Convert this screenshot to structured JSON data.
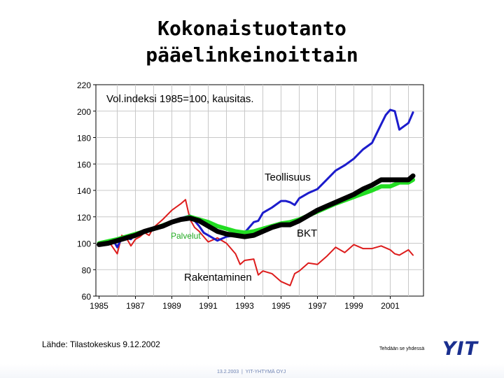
{
  "title_lines": [
    "Kokonaistuotanto",
    "pääelinkeinoittain"
  ],
  "source": "Lähde: Tilastokeskus 9.12.2002",
  "tagline": "Tehdään se yhdessä",
  "logo": "YIT",
  "footer": {
    "date": "13.2.2003",
    "separator": "|",
    "company": "YIT-YHTYMÄ OYJ"
  },
  "chart_data": {
    "type": "line",
    "annotation": "Vol.indeksi 1985=100, kausitas.",
    "xlim": [
      1985,
      2002.6
    ],
    "ylim": [
      60,
      220
    ],
    "yticks": [
      60,
      80,
      100,
      120,
      140,
      160,
      180,
      200,
      220
    ],
    "xticks": [
      1985,
      1987,
      1989,
      1991,
      1993,
      1995,
      1997,
      1999,
      2001
    ],
    "grid": true,
    "series": [
      {
        "name": "Teollisuus",
        "color": "#1c1ccc",
        "x": [
          1985,
          1985.25,
          1985.5,
          1985.75,
          1986,
          1986.25,
          1986.5,
          1986.75,
          1987,
          1987.5,
          1988,
          1988.5,
          1989,
          1989.5,
          1990,
          1990.25,
          1990.5,
          1990.75,
          1991,
          1991.25,
          1991.5,
          1992,
          1992.5,
          1993,
          1993.25,
          1993.5,
          1993.75,
          1994,
          1994.5,
          1995,
          1995.25,
          1995.5,
          1995.75,
          1996,
          1996.5,
          1997,
          1997.5,
          1998,
          1998.5,
          1999,
          1999.5,
          2000,
          2000.25,
          2000.5,
          2000.75,
          2001,
          2001.25,
          2001.5,
          2002,
          2002.25
        ],
        "values": [
          100,
          101,
          100,
          103,
          97,
          104,
          104,
          103,
          107,
          109,
          111,
          113,
          117,
          119,
          121,
          117,
          113,
          108,
          106,
          104,
          102,
          105,
          106,
          108,
          112,
          116,
          117,
          123,
          127,
          132,
          132,
          131,
          129,
          134,
          138,
          141,
          148,
          155,
          159,
          164,
          171,
          176,
          183,
          190,
          197,
          201,
          200,
          186,
          191,
          199
        ]
      },
      {
        "name": "Palvelut",
        "color": "#22dd22",
        "x": [
          1985,
          1986,
          1987,
          1988,
          1989,
          1989.5,
          1990,
          1990.5,
          1991,
          1991.5,
          1992,
          1992.5,
          1993,
          1993.5,
          1994,
          1994.5,
          1995,
          1995.5,
          1996,
          1996.5,
          1997,
          1998,
          1999,
          2000,
          2000.5,
          2001,
          2001.5,
          2002,
          2002.25
        ],
        "values": [
          100,
          103,
          107,
          111,
          116,
          118,
          120,
          118,
          116,
          113,
          111,
          109,
          108,
          109,
          111,
          113,
          115,
          116,
          118,
          121,
          124,
          130,
          135,
          140,
          143,
          143,
          146,
          146,
          148
        ]
      },
      {
        "name": "BKT",
        "color": "#000000",
        "x": [
          1985,
          1985.5,
          1986,
          1986.5,
          1987,
          1987.5,
          1988,
          1988.5,
          1989,
          1989.5,
          1990,
          1990.5,
          1991,
          1991.5,
          1992,
          1992.5,
          1993,
          1993.5,
          1994,
          1994.5,
          1995,
          1995.5,
          1996,
          1996.5,
          1997,
          1997.5,
          1998,
          1998.5,
          1999,
          1999.5,
          2000,
          2000.5,
          2001,
          2001.5,
          2002,
          2002.25
        ],
        "values": [
          99,
          100,
          102,
          104,
          106,
          109,
          111,
          113,
          116,
          118,
          119,
          117,
          113,
          109,
          107,
          106,
          105,
          106,
          109,
          112,
          114,
          114,
          117,
          121,
          125,
          128,
          131,
          134,
          137,
          141,
          144,
          148,
          148,
          148,
          148,
          151
        ]
      },
      {
        "name": "Rakentaminen",
        "color": "#dd1c1c",
        "x": [
          1985,
          1985.5,
          1986,
          1986.25,
          1986.5,
          1986.75,
          1987,
          1987.25,
          1987.5,
          1987.75,
          1988,
          1988.5,
          1989,
          1989.5,
          1989.75,
          1990,
          1990.25,
          1990.5,
          1990.75,
          1991,
          1991.5,
          1992,
          1992.5,
          1992.75,
          1993,
          1993.5,
          1993.75,
          1994,
          1994.5,
          1995,
          1995.5,
          1995.75,
          1996,
          1996.5,
          1997,
          1997.5,
          1998,
          1998.5,
          1999,
          1999.5,
          2000,
          2000.5,
          2001,
          2001.25,
          2001.5,
          2002,
          2002.25
        ],
        "values": [
          100,
          102,
          92,
          106,
          104,
          98,
          103,
          105,
          108,
          106,
          112,
          118,
          125,
          130,
          133,
          118,
          112,
          109,
          105,
          101,
          104,
          100,
          92,
          84,
          87,
          88,
          76,
          79,
          77,
          71,
          68,
          77,
          79,
          85,
          84,
          90,
          97,
          93,
          99,
          96,
          96,
          98,
          95,
          92,
          91,
          95,
          91
        ]
      }
    ],
    "labels": [
      {
        "text": "Teollisuus",
        "color": "#000000"
      },
      {
        "text": "Palvelut",
        "color": "#22aa22"
      },
      {
        "text": "BKT",
        "color": "#000000"
      },
      {
        "text": "Rakentaminen",
        "color": "#000000"
      }
    ]
  }
}
